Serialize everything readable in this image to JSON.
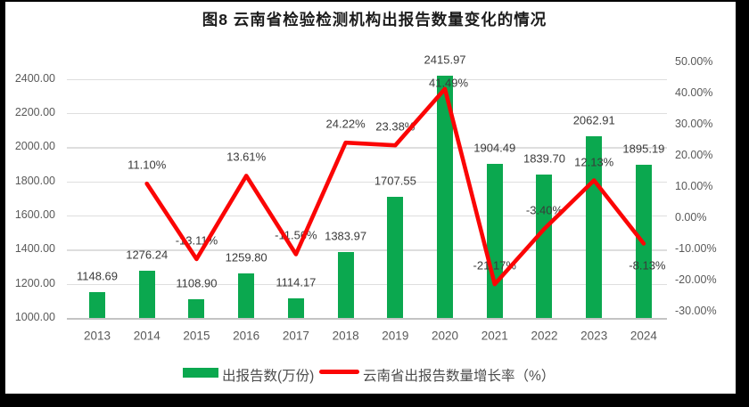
{
  "title": "图8 云南省检验检测机构出报告数量变化的情况",
  "colors": {
    "bar_green": "#0ba84f",
    "line_red": "#fb0505",
    "gridline": "#dedede",
    "axis_line": "#c3c3c3",
    "tick_text": "#595959",
    "label_text": "#3a3a3a",
    "frame_black": "#000000",
    "background": "#ffffff"
  },
  "chart_data": {
    "type": "bar",
    "subtype": "combo-bar-line",
    "title": "图8 云南省检验检测机构出报告数量变化的情况",
    "categories": [
      "2013",
      "2014",
      "2015",
      "2016",
      "2017",
      "2018",
      "2019",
      "2020",
      "2021",
      "2022",
      "2023",
      "2024"
    ],
    "series": [
      {
        "name": "出报告数(万份)",
        "type": "bar",
        "axis": "left",
        "color": "#0ba84f",
        "values": [
          1148.69,
          1276.24,
          1108.9,
          1259.8,
          1114.17,
          1383.97,
          1707.55,
          2415.97,
          1904.49,
          1839.7,
          2062.91,
          1895.19
        ],
        "data_labels": [
          "1148.69",
          "1276.24",
          "1108.90",
          "1259.80",
          "1114.17",
          "1383.97",
          "1707.55",
          "2415.97",
          "1904.49",
          "1839.70",
          "2062.91",
          "1895.19"
        ]
      },
      {
        "name": "云南省出报告数量增长率（%）",
        "type": "line",
        "axis": "right",
        "color": "#fb0505",
        "values": [
          null,
          11.1,
          -13.11,
          13.61,
          -11.56,
          24.22,
          23.38,
          41.49,
          -21.17,
          -3.4,
          12.13,
          -8.13
        ],
        "data_labels": [
          null,
          "11.10%",
          "-13.11%",
          "13.61%",
          "-11.56%",
          "24.22%",
          "23.38%",
          "41.49%",
          "-21.17%",
          "-3.40%",
          "12.13%",
          "-8.13%"
        ]
      }
    ],
    "left_axis": {
      "min": 1000,
      "max": 2400,
      "step": 200,
      "ticks": [
        "1000.00",
        "1200.00",
        "1400.00",
        "1600.00",
        "1800.00",
        "2000.00",
        "2200.00",
        "2400.00"
      ]
    },
    "right_axis": {
      "min": -30,
      "max": 50,
      "step": 10,
      "ticks": [
        "-30.00%",
        "-20.00%",
        "-10.00%",
        "0.00%",
        "10.00%",
        "20.00%",
        "30.00%",
        "40.00%",
        "50.00%"
      ]
    },
    "grid": "horizontal-on",
    "legend": {
      "position": "bottom",
      "entries": [
        "出报告数(万份)",
        "云南省出报告数量增长率（%）"
      ]
    }
  }
}
